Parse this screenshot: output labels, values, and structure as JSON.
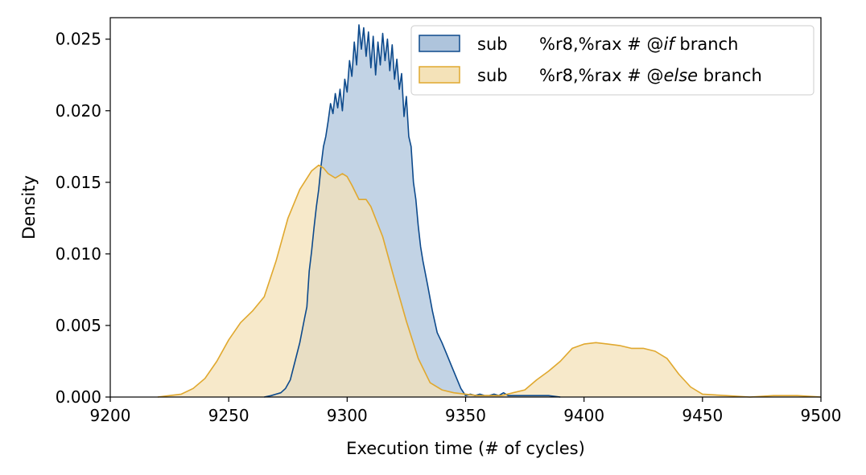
{
  "chart_data": {
    "type": "area",
    "xlabel": "Execution time (# of cycles)",
    "ylabel": "Density",
    "xlim": [
      9200,
      9500
    ],
    "ylim": [
      0,
      0.0265
    ],
    "x_ticks": [
      "9200",
      "9250",
      "9300",
      "9350",
      "9400",
      "9450",
      "9500"
    ],
    "y_ticks": [
      "0.000",
      "0.005",
      "0.010",
      "0.015",
      "0.020",
      "0.025"
    ],
    "legend_position": "top-right",
    "grid": false,
    "series": [
      {
        "name_parts": [
          "sub",
          "%r8,%rax # @",
          "if",
          " branch"
        ],
        "stroke": "#0d4a8c",
        "fill": "#aec4dc",
        "x": [
          9265,
          9268,
          9270,
          9272,
          9274,
          9276,
          9278,
          9280,
          9282,
          9283,
          9284,
          9285,
          9286,
          9287,
          9288,
          9289,
          9290,
          9291,
          9292,
          9293,
          9294,
          9295,
          9296,
          9297,
          9298,
          9299,
          9300,
          9301,
          9302,
          9303,
          9304,
          9305,
          9306,
          9307,
          9308,
          9309,
          9310,
          9311,
          9312,
          9313,
          9314,
          9315,
          9316,
          9317,
          9318,
          9319,
          9320,
          9321,
          9322,
          9323,
          9324,
          9325,
          9326,
          9327,
          9328,
          9329,
          9330,
          9331,
          9332,
          9334,
          9336,
          9338,
          9340,
          9342,
          9344,
          9346,
          9348,
          9350,
          9352,
          9354,
          9356,
          9358,
          9360,
          9362,
          9364,
          9366,
          9368,
          9370,
          9375,
          9380,
          9385,
          9390
        ],
        "y": [
          0,
          0.0001,
          0.0002,
          0.0003,
          0.0006,
          0.0012,
          0.0025,
          0.0038,
          0.0055,
          0.0063,
          0.0088,
          0.0102,
          0.0118,
          0.0133,
          0.0145,
          0.0162,
          0.0175,
          0.0182,
          0.0193,
          0.0205,
          0.0198,
          0.0212,
          0.0202,
          0.0215,
          0.02,
          0.0222,
          0.0213,
          0.0235,
          0.0224,
          0.0248,
          0.0232,
          0.026,
          0.0243,
          0.0258,
          0.0238,
          0.0255,
          0.023,
          0.0252,
          0.0225,
          0.0248,
          0.0232,
          0.0254,
          0.0235,
          0.025,
          0.0228,
          0.0246,
          0.0222,
          0.0236,
          0.0215,
          0.0226,
          0.0196,
          0.021,
          0.0182,
          0.0175,
          0.015,
          0.0138,
          0.012,
          0.0105,
          0.0095,
          0.0078,
          0.006,
          0.0045,
          0.0038,
          0.003,
          0.0022,
          0.0014,
          0.0006,
          0.0001,
          0.0002,
          0.0001,
          0.0002,
          0.0001,
          0.0001,
          0.0002,
          0.0001,
          0.0003,
          0.0001,
          0.0001,
          0.0001,
          0.0001,
          0.0001,
          0
        ]
      },
      {
        "name_parts": [
          "sub",
          "%r8,%rax # @",
          "else",
          " branch"
        ],
        "stroke": "#e0a82e",
        "fill": "#f4e2b8",
        "x": [
          9220,
          9225,
          9230,
          9235,
          9240,
          9245,
          9250,
          9255,
          9260,
          9265,
          9270,
          9275,
          9280,
          9285,
          9288,
          9290,
          9292,
          9295,
          9298,
          9300,
          9302,
          9305,
          9308,
          9310,
          9315,
          9320,
          9325,
          9330,
          9335,
          9340,
          9345,
          9350,
          9355,
          9360,
          9365,
          9370,
          9375,
          9380,
          9385,
          9390,
          9395,
          9400,
          9405,
          9410,
          9415,
          9420,
          9425,
          9430,
          9435,
          9440,
          9445,
          9450,
          9460,
          9470,
          9480,
          9490,
          9500
        ],
        "y": [
          0,
          0.0001,
          0.0002,
          0.0006,
          0.0013,
          0.0025,
          0.004,
          0.0052,
          0.006,
          0.007,
          0.0095,
          0.0125,
          0.0145,
          0.0158,
          0.0162,
          0.016,
          0.0156,
          0.0153,
          0.0156,
          0.0154,
          0.0148,
          0.0138,
          0.0138,
          0.0133,
          0.0112,
          0.0082,
          0.0053,
          0.0027,
          0.001,
          0.0005,
          0.0003,
          0.0002,
          0.0001,
          0.0001,
          0.0001,
          0.0003,
          0.0005,
          0.0012,
          0.0018,
          0.0025,
          0.0034,
          0.0037,
          0.0038,
          0.0037,
          0.0036,
          0.0034,
          0.0034,
          0.0032,
          0.0027,
          0.0016,
          0.0007,
          0.0002,
          0.0001,
          0,
          0.0001,
          0.0001,
          0
        ]
      }
    ]
  }
}
